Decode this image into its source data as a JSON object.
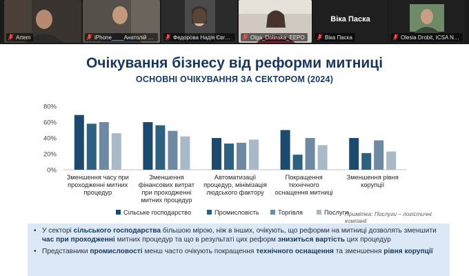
{
  "participants": [
    {
      "name": "Artem"
    },
    {
      "name": "iPhone____Анатолій С..."
    },
    {
      "name": "Федорова Надія Євге..."
    },
    {
      "name": "Olga_Dolinska_EEPO"
    },
    {
      "name": "Віка Паска",
      "display_name": "Віка Паска"
    },
    {
      "name": "Olesia Drobit, ICSA NA..."
    }
  ],
  "slide": {
    "title": "Очікування бізнесу від реформи митниці",
    "subtitle": "ОСНОВНІ ОЧІКУВАННЯ ЗА СЕКТОРОМ (2024)",
    "note": "Примітка: Послуги – логістичні компанії"
  },
  "chart_data": {
    "type": "bar",
    "categories": [
      "Зменшення часу при проходженні митних процедур",
      "Зменшення фінансових витрат при проходженні митних процедур",
      "Автоматизації процедур, мінімізація людського фактору",
      "Покращення технічного оснащення митниці",
      "Зменшення рівня корупції"
    ],
    "category_lines": [
      [
        "Зменшення часу при",
        "проходженні митних",
        "процедур"
      ],
      [
        "Зменшення",
        "фінансових витрат",
        "при проходженні",
        "митних процедур"
      ],
      [
        "Автоматизації",
        "процедур, мінімізація",
        "людського фактору"
      ],
      [
        "Покращення",
        "технічного",
        "оснащення митниці"
      ],
      [
        "Зменшення рівня",
        "корупції"
      ]
    ],
    "series": [
      {
        "name": "Сільське господарство",
        "color": "#1b4a6e",
        "values": [
          0.69,
          0.6,
          0.4,
          0.5,
          0.4
        ]
      },
      {
        "name": "Промисловість",
        "color": "#2e6080",
        "values": [
          0.58,
          0.56,
          0.33,
          0.19,
          0.21
        ]
      },
      {
        "name": "Торгівля",
        "color": "#6e8aa3",
        "values": [
          0.6,
          0.49,
          0.34,
          0.4,
          0.37
        ]
      },
      {
        "name": "Послуги",
        "color": "#a9b9c8",
        "values": [
          0.46,
          0.42,
          0.38,
          0.31,
          0.23
        ]
      }
    ],
    "yticks": [
      "0%",
      "20%",
      "40%",
      "60%",
      "80%"
    ],
    "ylim": [
      0,
      0.8
    ],
    "legend_position": "bottom",
    "grid": false
  },
  "summary": {
    "bullet1": [
      {
        "t": "У секторі ",
        "b": false
      },
      {
        "t": "сільського господарства",
        "b": true
      },
      {
        "t": " більшою мірою, ніж в інших, очікують, що реформи на митниці дозволять зменшити ",
        "b": false
      },
      {
        "t": "час при проходженні",
        "b": true
      },
      {
        "t": " митних процедур та що в результаті цих реформ ",
        "b": false
      },
      {
        "t": "знизиться вартість",
        "b": true
      },
      {
        "t": " цих процедур",
        "b": false
      }
    ],
    "bullet2": [
      {
        "t": "Представники ",
        "b": false
      },
      {
        "t": "промисловості",
        "b": true
      },
      {
        "t": " менш часто очікують покращення ",
        "b": false
      },
      {
        "t": "технічного оснащення",
        "b": true
      },
      {
        "t": " та зменшення ",
        "b": false
      },
      {
        "t": "рівня корупції",
        "b": true
      }
    ]
  }
}
